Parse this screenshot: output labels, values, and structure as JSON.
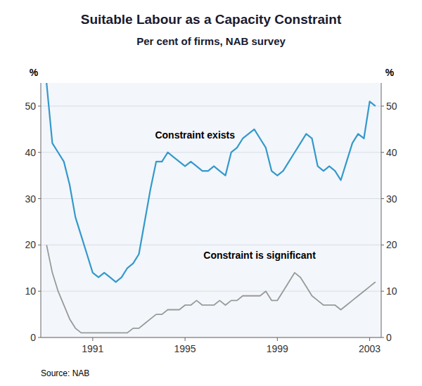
{
  "chart_data": {
    "type": "line",
    "title": "Suitable Labour as a Capacity Constraint",
    "subtitle": "Per cent of firms, NAB survey",
    "source": "Source: NAB",
    "ylabel": "%",
    "y2label": "%",
    "x": [
      1989.0,
      1989.25,
      1989.5,
      1989.75,
      1990.0,
      1990.25,
      1990.5,
      1990.75,
      1991.0,
      1991.25,
      1991.5,
      1991.75,
      1992.0,
      1992.25,
      1992.5,
      1992.75,
      1993.0,
      1993.25,
      1993.5,
      1993.75,
      1994.0,
      1994.25,
      1994.5,
      1994.75,
      1995.0,
      1995.25,
      1995.5,
      1995.75,
      1996.0,
      1996.25,
      1996.5,
      1996.75,
      1997.0,
      1997.25,
      1997.5,
      1997.75,
      1998.0,
      1998.25,
      1998.5,
      1998.75,
      1999.0,
      1999.25,
      1999.5,
      1999.75,
      2000.0,
      2000.25,
      2000.5,
      2000.75,
      2001.0,
      2001.25,
      2001.5,
      2001.75,
      2002.0,
      2002.25,
      2002.5,
      2002.75,
      2003.0,
      2003.25
    ],
    "series": [
      {
        "color": "#3399cc",
        "values": [
          55,
          42,
          40,
          38,
          33,
          26,
          22,
          18,
          14,
          13,
          14,
          13,
          12,
          13,
          15,
          16,
          18,
          25,
          32,
          38,
          38,
          40,
          39,
          38,
          37,
          38,
          37,
          36,
          36,
          37,
          36,
          35,
          40,
          41,
          43,
          44,
          45,
          43,
          41,
          36,
          35,
          36,
          38,
          40,
          42,
          44,
          43,
          37,
          36,
          37,
          36,
          34,
          38,
          42,
          44,
          43,
          51,
          50
        ]
      },
      {
        "color": "#999999",
        "values": [
          20,
          14,
          10,
          7,
          4,
          2,
          1,
          1,
          1,
          1,
          1,
          1,
          1,
          1,
          1,
          2,
          2,
          3,
          4,
          5,
          5,
          6,
          6,
          6,
          7,
          7,
          8,
          7,
          7,
          7,
          8,
          7,
          8,
          8,
          9,
          9,
          9,
          9,
          10,
          8,
          8,
          10,
          12,
          14,
          13,
          11,
          9,
          8,
          7,
          7,
          7,
          6,
          7,
          8,
          9,
          10,
          11,
          12
        ]
      }
    ],
    "annotations": [
      {
        "text": "Constraint exists",
        "x": 1993.7,
        "y": 43
      },
      {
        "text": "Constraint is significant",
        "x": 1995.8,
        "y": 17
      }
    ],
    "xlim": [
      1988.75,
      2003.5
    ],
    "xticks": [
      1991,
      1995,
      1999,
      2003
    ],
    "ylim": [
      0,
      55
    ],
    "yticks": [
      0,
      10,
      20,
      30,
      40,
      50
    ],
    "y2lim": [
      0,
      55
    ],
    "y2ticks": [
      0,
      10,
      20,
      30,
      40,
      50
    ],
    "grid": true
  }
}
